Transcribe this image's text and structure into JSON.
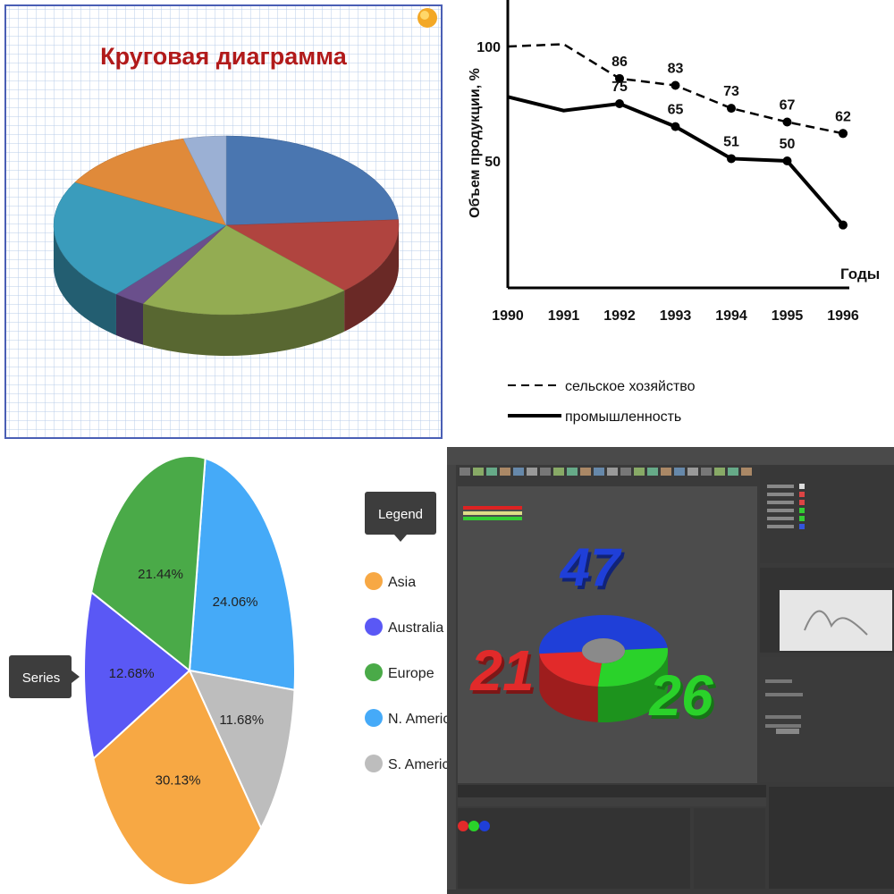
{
  "colors": {
    "p1_blue": "#4a76b0",
    "p1_red": "#b0443f",
    "p1_green": "#93ac52",
    "p1_purple": "#6a4f8c",
    "p1_teal": "#3a9cbc",
    "p1_orange": "#e08a3a",
    "p1_lightblue": "#9bb0d4",
    "asia": "#f7a844",
    "australia": "#5a58f5",
    "europe": "#4aaa48",
    "namerica": "#45aaf8",
    "samerica": "#bdbdbd",
    "c4d_red": "#e22a2a",
    "c4d_green": "#2ad22a",
    "c4d_blue": "#1f3fd8"
  },
  "chart_data": [
    {
      "type": "pie",
      "title": "Круговая диаграмма",
      "slices": [
        {
          "color": "#4a76b0",
          "value": 24
        },
        {
          "color": "#b0443f",
          "value": 14
        },
        {
          "color": "#93ac52",
          "value": 20
        },
        {
          "color": "#6a4f8c",
          "value": 3
        },
        {
          "color": "#3a9cbc",
          "value": 22
        },
        {
          "color": "#e08a3a",
          "value": 13
        },
        {
          "color": "#9bb0d4",
          "value": 4
        }
      ]
    },
    {
      "type": "line",
      "ylabel": "Объем продукции, %",
      "xlabel": "Годы",
      "x": [
        1990,
        1991,
        1992,
        1993,
        1994,
        1995,
        1996
      ],
      "ylim": [
        0,
        110
      ],
      "yticks": [
        50,
        100
      ],
      "series": [
        {
          "name": "сельское хозяйство",
          "style": "dashed",
          "x": [
            1990,
            1991,
            1992,
            1993,
            1994,
            1995,
            1996
          ],
          "values": [
            100,
            101,
            86,
            83,
            73,
            67,
            62
          ],
          "labels": [
            "",
            "",
            "86",
            "83",
            "73",
            "67",
            "62"
          ]
        },
        {
          "name": "промышленность",
          "style": "solid",
          "x": [
            1990,
            1991,
            1992,
            1993,
            1994,
            1995,
            1996
          ],
          "values": [
            78,
            72,
            75,
            65,
            51,
            50,
            22
          ],
          "labels": [
            "",
            "",
            "75",
            "65",
            "51",
            "50",
            ""
          ]
        }
      ]
    },
    {
      "type": "pie",
      "legend_title": "Legend",
      "series_label": "Series",
      "slices": [
        {
          "name": "N. America",
          "value": 24.06,
          "label": "24.06%",
          "color": "#45aaf8"
        },
        {
          "name": "S. America",
          "value": 11.68,
          "label": "11.68%",
          "color": "#bdbdbd"
        },
        {
          "name": "Asia",
          "value": 30.13,
          "label": "30.13%",
          "color": "#f7a844"
        },
        {
          "name": "Australia",
          "value": 12.68,
          "label": "12.68%",
          "color": "#5a58f5"
        },
        {
          "name": "Europe",
          "value": 21.44,
          "label": "21.44%",
          "color": "#4aaa48"
        }
      ],
      "legend": [
        "Asia",
        "Australia",
        "Europe",
        "N. America",
        "S. America"
      ],
      "legend_colors": [
        "#f7a844",
        "#5a58f5",
        "#4aaa48",
        "#45aaf8",
        "#bdbdbd"
      ]
    },
    {
      "type": "pie",
      "style": "3d-donut",
      "slices": [
        {
          "label": "47",
          "value": 47,
          "color": "#1f3fd8"
        },
        {
          "label": "26",
          "value": 26,
          "color": "#2ad22a"
        },
        {
          "label": "21",
          "value": 21,
          "color": "#e22a2a"
        }
      ]
    }
  ]
}
